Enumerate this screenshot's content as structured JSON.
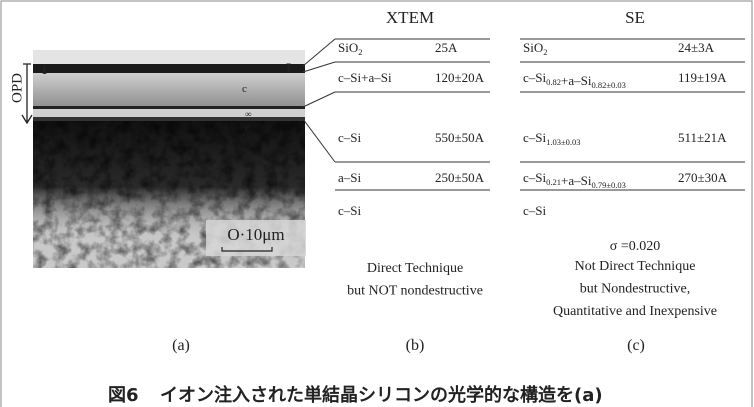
{
  "panel_a": {
    "labels": {
      "opd": "OPD",
      "scale": "O·10μm"
    },
    "caption": "(a)"
  },
  "xtem": {
    "title": "XTEM",
    "rows": [
      {
        "layer": [
          {
            "text": "SiO"
          },
          {
            "sub": "2"
          }
        ],
        "thickness": "25A"
      },
      {
        "layer": [
          {
            "text": "c–Si+a–Si"
          }
        ],
        "thickness": "120±20A"
      },
      {
        "layer": [
          {
            "text": "c–Si"
          }
        ],
        "thickness": "550±50A"
      },
      {
        "layer": [
          {
            "text": "a–Si"
          }
        ],
        "thickness": "250±50A"
      },
      {
        "layer": [
          {
            "text": "c–Si"
          }
        ]
      }
    ],
    "notes": [
      "Direct Technique",
      "but NOT nondestructive"
    ],
    "caption": "(b)"
  },
  "se": {
    "title": "SE",
    "rows": [
      {
        "layer": [
          {
            "text": "SiO"
          },
          {
            "sub": "2"
          }
        ],
        "thickness": "24±3A"
      },
      {
        "layer": [
          {
            "text": "c–Si"
          },
          {
            "sub": "0.82"
          },
          {
            "text": "+a–Si"
          },
          {
            "sub": "0.82±0.03"
          }
        ],
        "thickness": "119±19A"
      },
      {
        "layer": [
          {
            "text": "c–Si"
          },
          {
            "sub": "1.03±0.03"
          }
        ],
        "thickness": "511±21A"
      },
      {
        "layer": [
          {
            "text": "c–Si"
          },
          {
            "sub": "0.21"
          },
          {
            "text": "+a–Si"
          },
          {
            "sub": "0.79±0.03"
          }
        ],
        "thickness": "270±30A"
      },
      {
        "layer": [
          {
            "text": "c–Si"
          }
        ]
      }
    ],
    "sigma": "σ =0.020",
    "notes": [
      "Not Direct Technique",
      "but Nondestructive,",
      "Quantitative and Inexpensive"
    ],
    "caption": "(c)"
  },
  "figure_caption": {
    "number": "図6",
    "text": "イオン注入された単結晶シリコンの光学的な構造を(a)"
  }
}
